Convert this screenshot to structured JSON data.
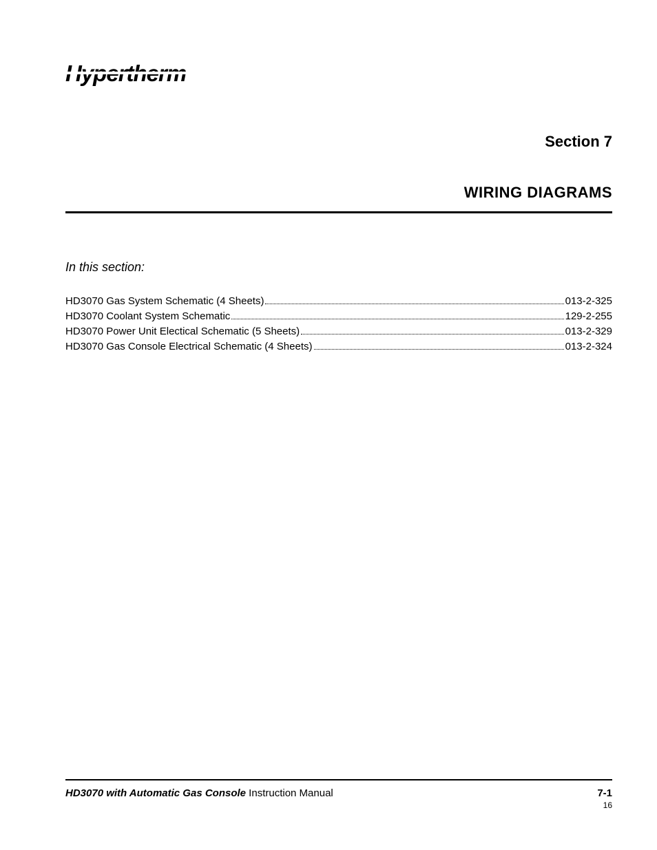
{
  "brand": "Hypertherm",
  "section_number": "Section 7",
  "section_title": "WIRING DIAGRAMS",
  "subtitle": "In this section:",
  "toc": [
    {
      "label": "HD3070 Gas System Schematic (4 Sheets)",
      "num": "013-2-325"
    },
    {
      "label": "HD3070 Coolant System Schematic",
      "num": "129-2-255"
    },
    {
      "label": "HD3070 Power Unit Electical Schematic (5 Sheets)",
      "num": " 013-2-329"
    },
    {
      "label": "HD3070 Gas Console Electrical Schematic (4 Sheets)",
      "num": "013-2-324"
    }
  ],
  "footer": {
    "product": "HD3070 with Automatic Gas Console",
    "doc": "  Instruction Manual",
    "page": "7-1",
    "small": "16"
  },
  "colors": {
    "text": "#000000",
    "background": "#ffffff"
  },
  "fonts": {
    "body": "Arial, Helvetica, sans-serif",
    "logo_style": "italic bold"
  }
}
